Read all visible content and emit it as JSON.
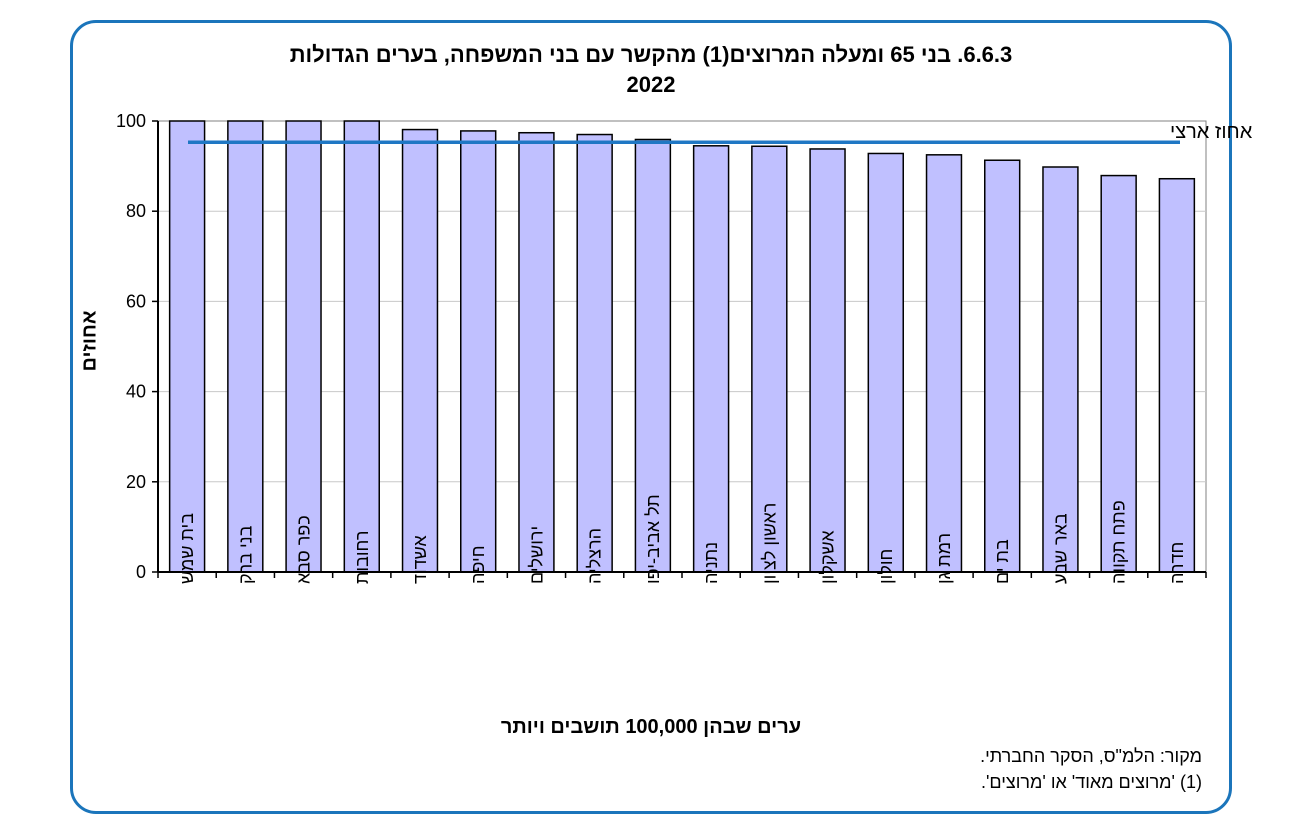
{
  "chart_data": {
    "type": "bar",
    "title_line1": "6.6.3. בני 65 ומעלה המרוצים(1) מהקשר עם בני המשפחה, בערים הגדולות",
    "title_line2": "2022",
    "ylabel": "אחוזים",
    "xlabel": "ערים שבהן 100,000 תושבים ויותר",
    "ylim": [
      0,
      100
    ],
    "yticks": [
      0,
      20,
      40,
      60,
      80,
      100
    ],
    "categories": [
      "בית שמש",
      "בני ברק",
      "כפר סבא",
      "רחובות",
      "אשדוד",
      "חיפה",
      "ירושלים",
      "הרצליה",
      "תל אביב-יפו",
      "נתניה",
      "ראשון לציון",
      "אשקלון",
      "חולון",
      "רמת גן",
      "בת ים",
      "באר שבע",
      "פתח תקווה",
      "חדרה"
    ],
    "values": [
      100,
      100,
      100,
      100,
      98.1,
      97.8,
      97.4,
      97.0,
      95.9,
      94.5,
      94.4,
      93.8,
      92.8,
      92.5,
      91.3,
      89.8,
      87.9,
      87.2
    ],
    "reference_line": {
      "label": "אחוז ארצי",
      "value": 95.3
    },
    "bar_color": "#c0c0ff",
    "line_color": "#1f77c4"
  },
  "footnotes": {
    "source": "מקור: הלמ\"ס, הסקר החברתי.",
    "note1": "(1) 'מרוצים מאוד' או 'מרוצים'."
  },
  "colors": {
    "frame": "#1b75bb"
  }
}
